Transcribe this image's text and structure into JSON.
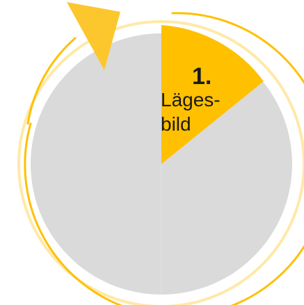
{
  "colors": {
    "circle_fill": "#dadada",
    "ring": "#ffc000",
    "arrow": "#fcc72d",
    "active_segment": "#ffc000"
  },
  "active_step": {
    "number": "1.",
    "title_line1": "Läges-",
    "title_line2": "bild"
  },
  "icons": {
    "arrow": "arrow-head-icon"
  }
}
